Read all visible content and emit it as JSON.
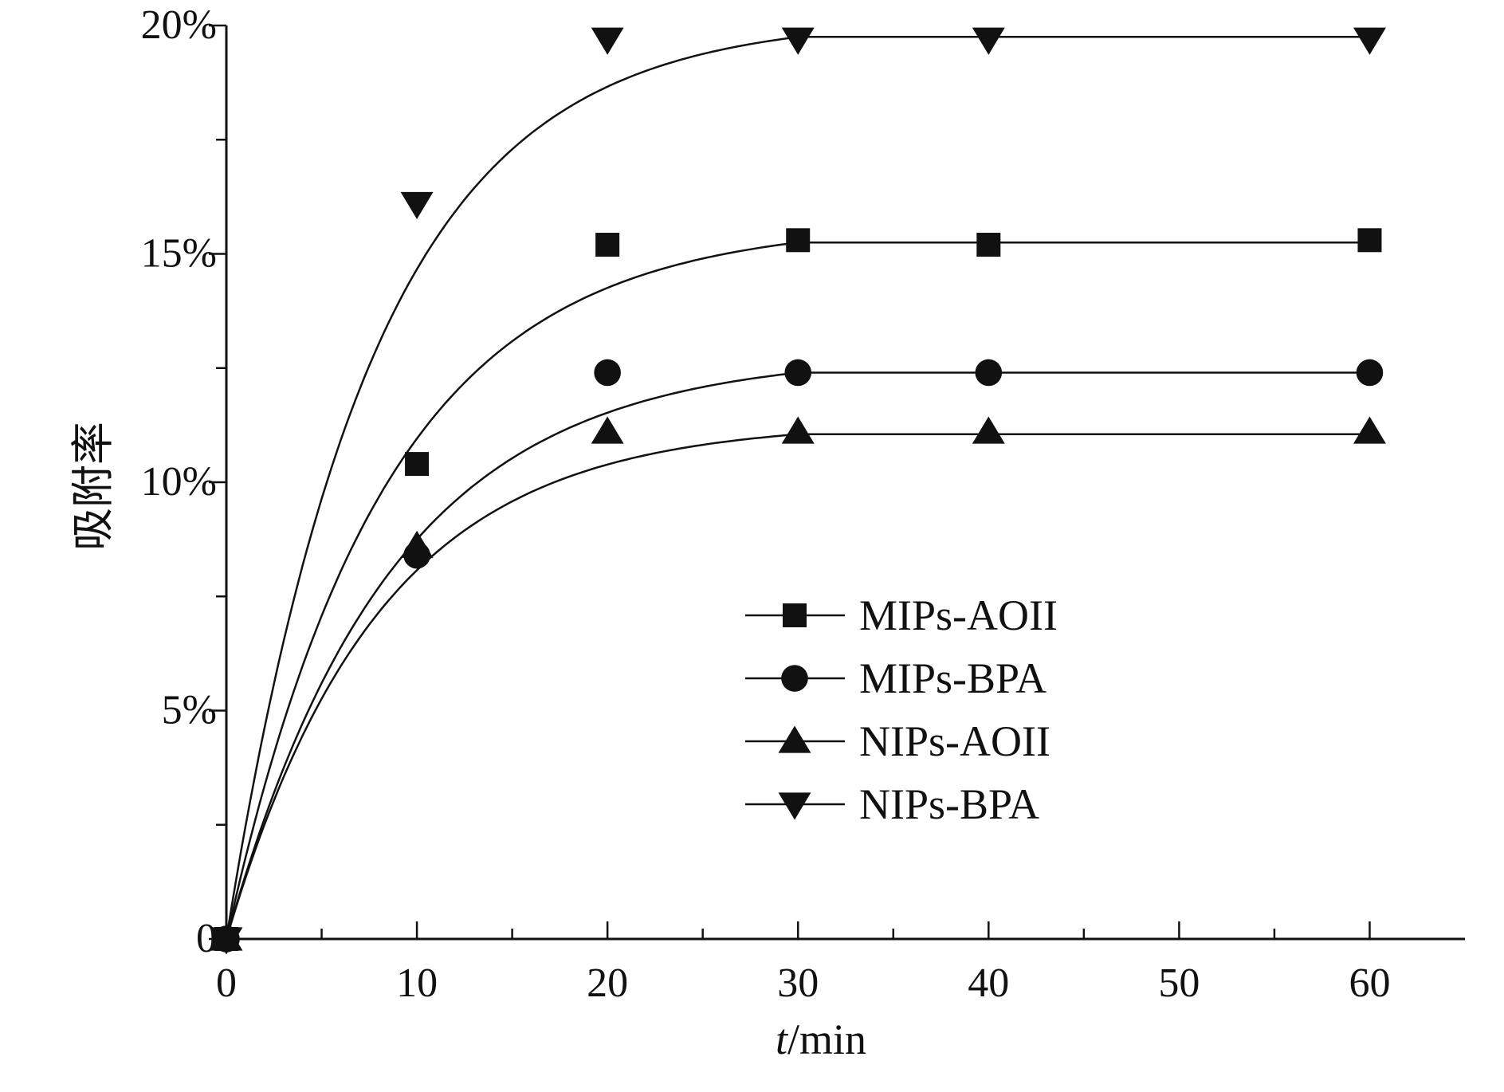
{
  "chart_data": {
    "type": "scatter",
    "title": "",
    "xlabel_italic": "t",
    "xlabel_unit": "/min",
    "ylabel": "吸附率",
    "xlim": [
      0,
      65
    ],
    "ylim": [
      0,
      20
    ],
    "x_ticks": [
      0,
      10,
      20,
      30,
      40,
      50,
      60
    ],
    "x_minor_ticks": [
      5,
      15,
      25,
      35,
      45,
      55
    ],
    "y_ticks": [
      {
        "value": 0,
        "label": "0"
      },
      {
        "value": 5,
        "label": "5%"
      },
      {
        "value": 10,
        "label": "10%"
      },
      {
        "value": 15,
        "label": "15%"
      },
      {
        "value": 20,
        "label": "20%"
      }
    ],
    "y_minor_ticks": [
      2.5,
      7.5,
      12.5,
      17.5
    ],
    "legend_position": "center-right",
    "series": [
      {
        "name": "MIPs-AOII",
        "marker": "square",
        "x": [
          0,
          10,
          20,
          30,
          40,
          60
        ],
        "values": [
          0,
          10.4,
          15.2,
          15.3,
          15.2,
          15.3
        ],
        "plateau": 15.25,
        "rate": 0.12
      },
      {
        "name": "MIPs-BPA",
        "marker": "circle",
        "x": [
          0,
          10,
          20,
          30,
          40,
          60
        ],
        "values": [
          0,
          8.4,
          12.4,
          12.4,
          12.4,
          12.4
        ],
        "plateau": 12.4,
        "rate": 0.115
      },
      {
        "name": "NIPs-AOII",
        "marker": "triangle-up",
        "x": [
          0,
          10,
          20,
          30,
          40,
          60
        ],
        "values": [
          0,
          8.6,
          11.1,
          11.1,
          11.1,
          11.1
        ],
        "plateau": 11.05,
        "rate": 0.125
      },
      {
        "name": "NIPs-BPA",
        "marker": "triangle-down",
        "x": [
          0,
          10,
          20,
          30,
          40,
          60
        ],
        "values": [
          0,
          16.1,
          19.7,
          19.7,
          19.7,
          19.7
        ],
        "plateau": 19.75,
        "rate": 0.13
      }
    ]
  }
}
